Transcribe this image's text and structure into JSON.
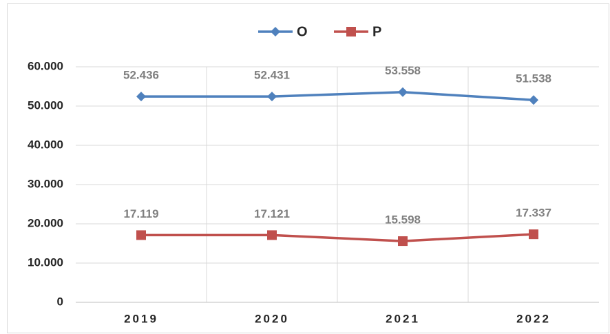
{
  "chart_data": {
    "type": "line",
    "categories": [
      "2019",
      "2020",
      "2021",
      "2022"
    ],
    "series": [
      {
        "name": "O",
        "color": "#4f81bd",
        "marker": "diamond",
        "values": [
          52436,
          52431,
          53558,
          51538
        ],
        "value_labels": [
          "52.436",
          "52.431",
          "53.558",
          "51.538"
        ]
      },
      {
        "name": "P",
        "color": "#c0504d",
        "marker": "square",
        "values": [
          17119,
          17121,
          15598,
          17337
        ],
        "value_labels": [
          "17.119",
          "17.121",
          "15.598",
          "17.337"
        ]
      }
    ],
    "ylim": [
      0,
      60000
    ],
    "yticks": [
      0,
      {
        "value": 10000,
        "label": "10.000"
      },
      {
        "value": 20000,
        "label": "20.000"
      },
      {
        "value": 30000,
        "label": "30.000"
      },
      {
        "value": 40000,
        "label": "40.000"
      },
      {
        "value": 50000,
        "label": "50.000"
      },
      {
        "value": 60000,
        "label": "60.000"
      }
    ],
    "grid": true,
    "legend": "top"
  }
}
